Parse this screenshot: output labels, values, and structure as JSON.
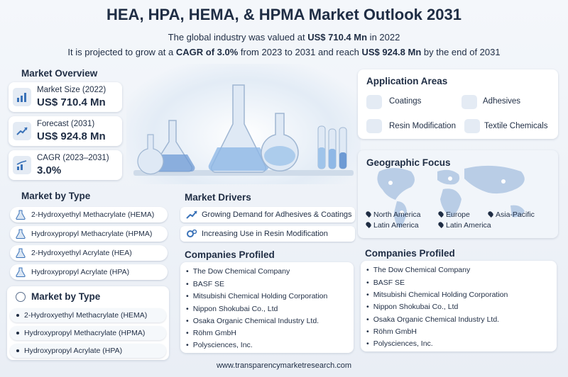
{
  "title": "HEA, HPA, HEMA, & HPMA Market Outlook 2031",
  "subtitle1": {
    "pre": "The global industry was valued at ",
    "value": "US$ 710.4 Mn",
    "post": " in 2022"
  },
  "subtitle2": {
    "pre": "It is projected to grow at a ",
    "cagr": "CAGR of 3.0%",
    "mid": " from 2023 to 2031 and reach ",
    "value": "US$ 924.8 Mn",
    "post": " by the end of 2031"
  },
  "market_overview": {
    "heading": "Market Overview",
    "items": [
      {
        "label": "Market Size (2022)",
        "value": "US$ 710.4 Mn",
        "icon": "bar-chart-icon"
      },
      {
        "label": "Forecast (2031)",
        "value": "US$ 924.8 Mn",
        "icon": "trend-up-icon"
      },
      {
        "label": "CAGR (2023–2031)",
        "value": "3.0%",
        "icon": "growth-chart-icon"
      }
    ]
  },
  "market_by_type_1": {
    "heading": "Market by Type",
    "items": [
      "2-Hydroxyethyl Methacrylate (HEMA)",
      "Hydroxypropyl Methacrylate (HPMA)",
      "2-Hydroxyethyl Acrylate (HEA)",
      "Hydroxypropyl Acrylate (HPA)"
    ]
  },
  "market_by_type_2": {
    "heading": "Market by Type",
    "items": [
      "2-Hydroxyethyl Methacrylate (HEMA)",
      "Hydroxypropyl Methacrylate (HPMA)",
      "Hydroxypropyl Acrylate (HPA)"
    ]
  },
  "market_drivers": {
    "heading": "Market Drivers",
    "items": [
      "Growing Demand for Adhesives & Coatings",
      "Increasing Use in Resin Modification"
    ]
  },
  "application_areas": {
    "heading": "Application Areas",
    "items": [
      "Coatings",
      "Adhesives",
      "Resin Modification",
      "Textile Chemicals"
    ]
  },
  "geographic_focus": {
    "heading": "Geographic Focus",
    "items": [
      "North America",
      "Europe",
      "Asia-Pacific",
      "Latin America",
      "Latin America"
    ]
  },
  "companies_1": {
    "heading": "Companies Profiled",
    "items": [
      "The Dow Chemical Company",
      "BASF SE",
      "Mitsubishi Chemical Holding Corporation",
      "Nippon Shokubai Co., Ltd",
      "Osaka Organic Chemical Industry Ltd.",
      "Röhm GmbH",
      "Polysciences, Inc."
    ]
  },
  "companies_2": {
    "heading": "Companies Profiled",
    "items": [
      "The Dow Chemical Company",
      "BASF SE",
      "Mitsubishi Chemical Holding Corporation",
      "Nippon Shokubai Co., Ltd",
      "Osaka Organic Chemical Industry Ltd.",
      "Röhm GmbH",
      "Polysciences, Inc."
    ]
  },
  "footer": "www.transparencymarketresearch.com",
  "colors": {
    "primary": "#1f2d44",
    "accent": "#3a72b8",
    "card": "#ffffff",
    "background": "#eef2f7"
  }
}
